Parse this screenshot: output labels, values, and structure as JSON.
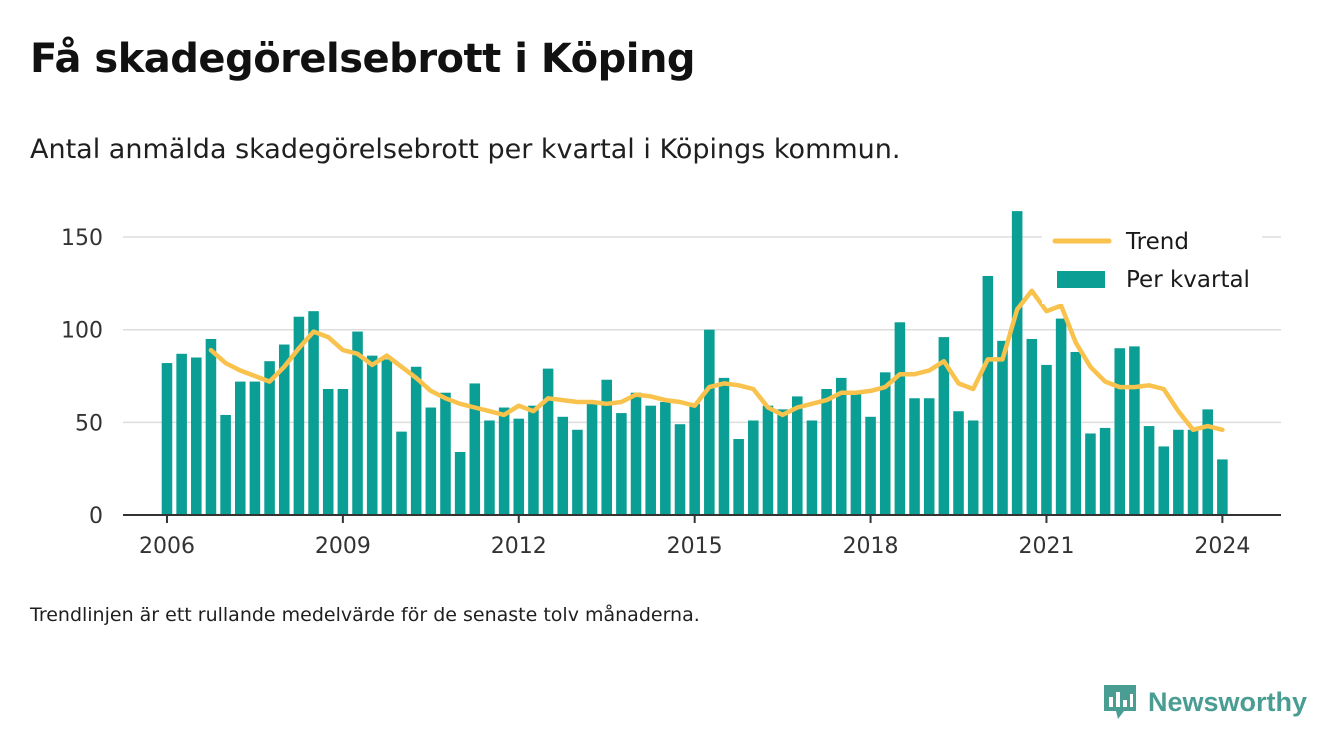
{
  "title": "Få skadegörelsebrott i Köping",
  "subtitle": "Antal anmälda skadegörelsebrott per kvartal i Köpings kommun.",
  "footnote": "Trendlinjen är ett rullande medelvärde för de senaste tolv månaderna.",
  "brand": {
    "name": "Newsworthy",
    "icon": "newsworthy-logo-icon"
  },
  "colors": {
    "bars": "#0a9e94",
    "trend": "#f8c24c",
    "grid": "#dddddd",
    "axis": "#333333"
  },
  "chart_data": {
    "type": "bar",
    "x_axis": {
      "range": [
        2005.25,
        2025.0
      ],
      "ticks": [
        "2006",
        "2009",
        "2012",
        "2015",
        "2018",
        "2021",
        "2024"
      ]
    },
    "y_axis": {
      "range": [
        0,
        170
      ],
      "ticks": [
        "0",
        "50",
        "100",
        "150"
      ]
    },
    "grid": true,
    "legend_position": "top-right",
    "series": [
      {
        "name": "Per kvartal",
        "type": "bar",
        "start_year": 2006,
        "start_quarter": 1,
        "values": [
          82,
          87,
          85,
          95,
          54,
          72,
          72,
          83,
          92,
          107,
          110,
          68,
          68,
          99,
          86,
          84,
          45,
          80,
          58,
          66,
          34,
          71,
          51,
          58,
          52,
          59,
          79,
          53,
          46,
          60,
          73,
          55,
          66,
          59,
          61,
          49,
          60,
          100,
          74,
          41,
          51,
          59,
          57,
          64,
          51,
          68,
          74,
          66,
          53,
          77,
          104,
          63,
          63,
          96,
          56,
          51,
          129,
          94,
          164,
          95,
          81,
          106,
          88,
          44,
          47,
          90,
          91,
          48,
          37,
          46,
          46,
          57,
          30
        ]
      },
      {
        "name": "Trend",
        "type": "line",
        "start_year": 2006,
        "start_quarter": 4,
        "values": [
          89,
          82,
          78,
          75,
          72,
          80,
          90,
          99,
          96,
          89,
          87,
          81,
          86,
          80,
          74,
          67,
          63,
          60,
          58,
          56,
          54,
          59,
          56,
          63,
          62,
          61,
          61,
          60,
          61,
          65,
          64,
          62,
          61,
          59,
          69,
          71,
          70,
          68,
          58,
          54,
          58,
          60,
          62,
          66,
          66,
          67,
          69,
          76,
          76,
          78,
          83,
          71,
          68,
          84,
          84,
          111,
          121,
          110,
          113,
          93,
          80,
          72,
          69,
          69,
          70,
          68,
          56,
          46,
          48,
          46
        ]
      }
    ]
  }
}
